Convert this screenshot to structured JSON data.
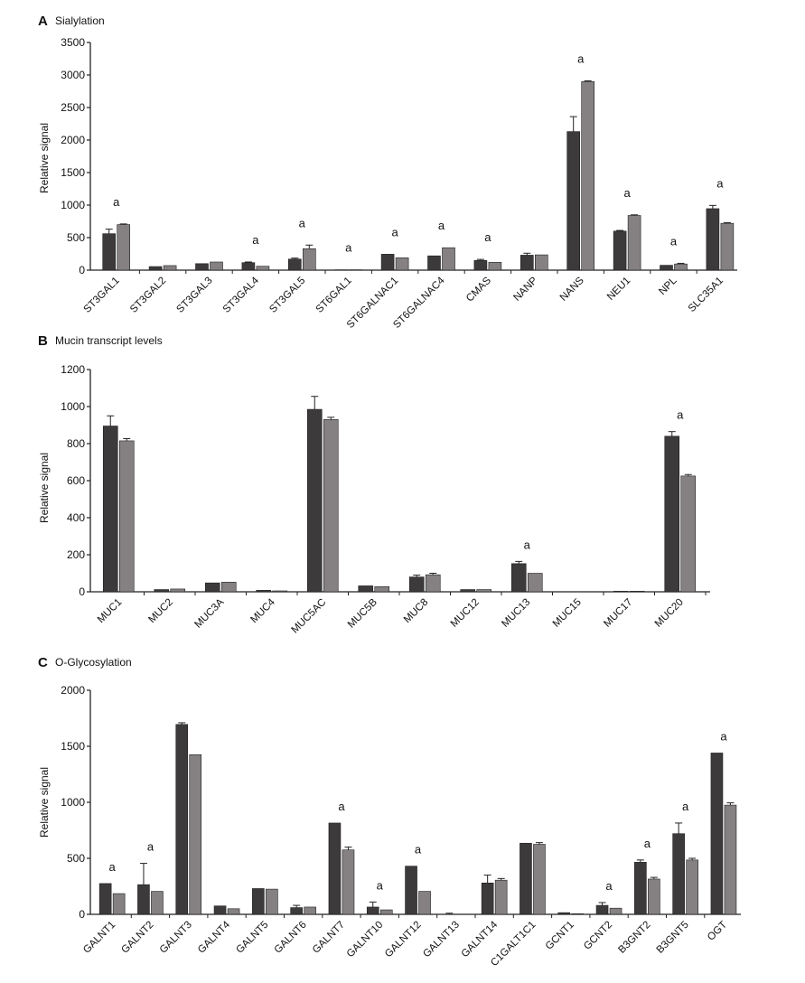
{
  "colors": {
    "bar_dark": "#3d3a3b",
    "bar_light": "#858183",
    "axis": "#222222"
  },
  "chart_data": [
    {
      "type": "bar",
      "panel": "A",
      "title": "Sialylation",
      "ylabel": "Relative signal",
      "xlabel": "",
      "ylim": [
        0,
        3500
      ],
      "yticks": [
        0,
        500,
        1000,
        1500,
        2000,
        2500,
        3000,
        3500
      ],
      "grid": false,
      "categories": [
        "ST3GAL1",
        "ST3GAL2",
        "ST3GAL3",
        "ST3GAL4",
        "ST3GAL5",
        "ST6GAL1",
        "ST6GALNAC1",
        "ST6GALNAC4",
        "CMAS",
        "NANP",
        "NANS",
        "NEU1",
        "NPL",
        "SLC35A1"
      ],
      "series": [
        {
          "values": [
            560,
            55,
            100,
            115,
            170,
            5,
            245,
            220,
            150,
            230,
            2130,
            600,
            75,
            945
          ],
          "errors": [
            70,
            0,
            0,
            10,
            15,
            0,
            0,
            0,
            15,
            30,
            230,
            10,
            0,
            50
          ]
        },
        {
          "values": [
            700,
            70,
            125,
            60,
            330,
            5,
            190,
            345,
            120,
            235,
            2900,
            840,
            95,
            720
          ],
          "errors": [
            10,
            0,
            0,
            0,
            55,
            0,
            0,
            0,
            0,
            0,
            10,
            10,
            10,
            10
          ]
        }
      ],
      "significance": [
        {
          "category": "ST3GAL1",
          "label": "a"
        },
        {
          "category": "ST3GAL4",
          "label": "a"
        },
        {
          "category": "ST3GAL5",
          "label": "a"
        },
        {
          "category": "ST6GAL1",
          "label": "a"
        },
        {
          "category": "ST6GALNAC1",
          "label": "a"
        },
        {
          "category": "ST6GALNAC4",
          "label": "a"
        },
        {
          "category": "CMAS",
          "label": "a"
        },
        {
          "category": "NANS",
          "label": "a"
        },
        {
          "category": "NEU1",
          "label": "a"
        },
        {
          "category": "NPL",
          "label": "a"
        },
        {
          "category": "SLC35A1",
          "label": "a"
        }
      ]
    },
    {
      "type": "bar",
      "panel": "B",
      "title": "Mucin transcript levels",
      "ylabel": "Relative signal",
      "xlabel": "",
      "ylim": [
        0,
        1200
      ],
      "yticks": [
        0,
        200,
        400,
        600,
        800,
        1000,
        1200
      ],
      "grid": false,
      "categories": [
        "MUC1",
        "MUC2",
        "MUC3A",
        "MUC4",
        "MUC5AC",
        "MUC5B",
        "MUC8",
        "MUC12",
        "MUC13",
        "MUC15",
        "MUC17",
        "MUC20"
      ],
      "series": [
        {
          "values": [
            895,
            12,
            48,
            8,
            985,
            32,
            80,
            12,
            152,
            0,
            3,
            840
          ],
          "errors": [
            55,
            0,
            0,
            0,
            70,
            0,
            10,
            0,
            12,
            0,
            0,
            25
          ]
        },
        {
          "values": [
            815,
            15,
            52,
            5,
            930,
            28,
            92,
            12,
            100,
            0,
            3,
            625
          ],
          "errors": [
            12,
            0,
            0,
            0,
            12,
            0,
            8,
            0,
            0,
            0,
            0,
            8
          ]
        }
      ],
      "significance": [
        {
          "category": "MUC13",
          "label": "a"
        },
        {
          "category": "MUC20",
          "label": "a"
        }
      ]
    },
    {
      "type": "bar",
      "panel": "C",
      "title": "O-Glycosylation",
      "ylabel": "Relative signal",
      "xlabel": "",
      "ylim": [
        0,
        2000
      ],
      "yticks": [
        0,
        500,
        1000,
        1500,
        2000
      ],
      "grid": false,
      "categories": [
        "GALNT1",
        "GALNT2",
        "GALNT3",
        "GALNT4",
        "GALNT5",
        "GALNT6",
        "GALNT7",
        "GALNT10",
        "GALNT12",
        "GALNT13",
        "GALNT14",
        "C1GALT1C1",
        "GCNT1",
        "GCNT2",
        "B3GNT2",
        "B3GNT5",
        "OGT"
      ],
      "series": [
        {
          "values": [
            275,
            265,
            1695,
            75,
            230,
            60,
            815,
            65,
            430,
            0,
            280,
            635,
            15,
            80,
            465,
            720,
            1440
          ],
          "errors": [
            0,
            190,
            15,
            0,
            0,
            20,
            0,
            45,
            0,
            10,
            70,
            0,
            0,
            25,
            20,
            95,
            0
          ]
        },
        {
          "values": [
            185,
            205,
            1425,
            50,
            225,
            65,
            575,
            40,
            205,
            0,
            305,
            625,
            5,
            55,
            315,
            485,
            975
          ],
          "errors": [
            0,
            0,
            0,
            0,
            0,
            0,
            25,
            0,
            0,
            0,
            15,
            15,
            0,
            0,
            15,
            15,
            20
          ]
        }
      ],
      "significance": [
        {
          "category": "GALNT1",
          "label": "a"
        },
        {
          "category": "GALNT2",
          "label": "a"
        },
        {
          "category": "GALNT7",
          "label": "a"
        },
        {
          "category": "GALNT10",
          "label": "a"
        },
        {
          "category": "GALNT12",
          "label": "a"
        },
        {
          "category": "GCNT2",
          "label": "a"
        },
        {
          "category": "B3GNT2",
          "label": "a"
        },
        {
          "category": "B3GNT5",
          "label": "a"
        },
        {
          "category": "OGT",
          "label": "a"
        }
      ]
    }
  ]
}
